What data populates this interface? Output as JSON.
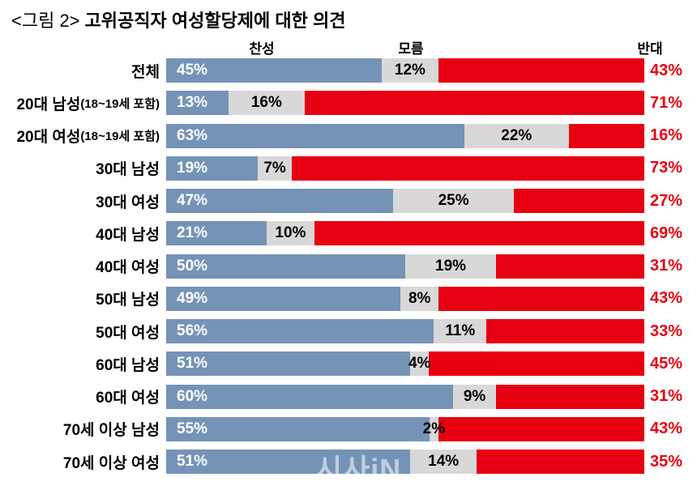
{
  "title": {
    "prefix": "<그림 2>",
    "main": "고위공직자 여성할당제에 대한 의견"
  },
  "watermark": "시사iN",
  "colors": {
    "agree": "#7593B7",
    "unknown": "#D8D8D8",
    "oppose": "#E60012",
    "label_oppose": "#E60012"
  },
  "chart_data": {
    "type": "bar",
    "stacked": true,
    "orientation": "horizontal",
    "unit": "%",
    "title": "<그림 2> 고위공직자 여성할당제에 대한 의견",
    "legend_position": "top",
    "categories": [
      {
        "label": "전체",
        "note": ""
      },
      {
        "label": "20대 남성",
        "note": "(18~19세 포함)"
      },
      {
        "label": "20대 여성",
        "note": "(18~19세 포함)"
      },
      {
        "label": "30대 남성",
        "note": ""
      },
      {
        "label": "30대 여성",
        "note": ""
      },
      {
        "label": "40대 남성",
        "note": ""
      },
      {
        "label": "40대 여성",
        "note": ""
      },
      {
        "label": "50대 남성",
        "note": ""
      },
      {
        "label": "50대 여성",
        "note": ""
      },
      {
        "label": "60대 남성",
        "note": ""
      },
      {
        "label": "60대 여성",
        "note": ""
      },
      {
        "label": "70세 이상 남성",
        "note": ""
      },
      {
        "label": "70세 이상 여성",
        "note": ""
      }
    ],
    "series": [
      {
        "name": "찬성",
        "color": "#7593B7",
        "values": [
          45,
          13,
          63,
          19,
          47,
          21,
          50,
          49,
          56,
          51,
          60,
          55,
          51
        ]
      },
      {
        "name": "모름",
        "color": "#D8D8D8",
        "values": [
          12,
          16,
          22,
          7,
          25,
          10,
          19,
          8,
          11,
          4,
          9,
          2,
          14
        ]
      },
      {
        "name": "반대",
        "color": "#E60012",
        "values": [
          43,
          71,
          16,
          73,
          27,
          69,
          31,
          43,
          33,
          45,
          31,
          43,
          35
        ]
      }
    ]
  }
}
